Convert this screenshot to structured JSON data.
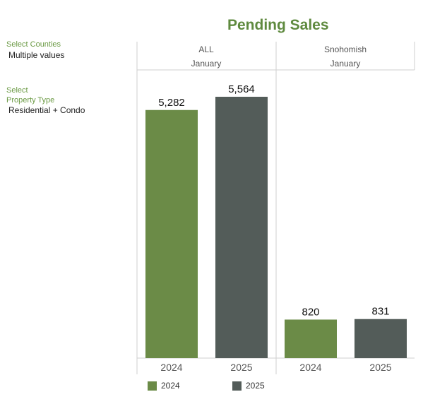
{
  "title": "Pending Sales",
  "filters": {
    "counties": {
      "label": "Select Counties",
      "value": "Multiple values"
    },
    "property_type": {
      "label_line1": "Select",
      "label_line2": "Property Type",
      "value": "Residential + Condo"
    }
  },
  "panels": [
    {
      "region": "ALL",
      "month": "January"
    },
    {
      "region": "Snohomish",
      "month": "January"
    }
  ],
  "colors": {
    "2024": "#6b8b47",
    "2025": "#535c59",
    "grid": "#cfcfcf",
    "axis_text": "#555555"
  },
  "legend": [
    {
      "label": "2024",
      "color": "#6b8b47"
    },
    {
      "label": "2025",
      "color": "#535c59"
    }
  ],
  "chart_data": {
    "type": "bar",
    "title": "Pending Sales",
    "categories": [
      "2024",
      "2025"
    ],
    "ylim": [
      0,
      6000
    ],
    "panels": [
      {
        "name": "ALL",
        "subtitle": "January",
        "values": [
          5282,
          5564
        ],
        "labels": [
          "5,282",
          "5,564"
        ]
      },
      {
        "name": "Snohomish",
        "subtitle": "January",
        "values": [
          820,
          831
        ],
        "labels": [
          "820",
          "831"
        ]
      }
    ],
    "series": [
      {
        "name": "2024",
        "color": "#6b8b47"
      },
      {
        "name": "2025",
        "color": "#535c59"
      }
    ]
  }
}
